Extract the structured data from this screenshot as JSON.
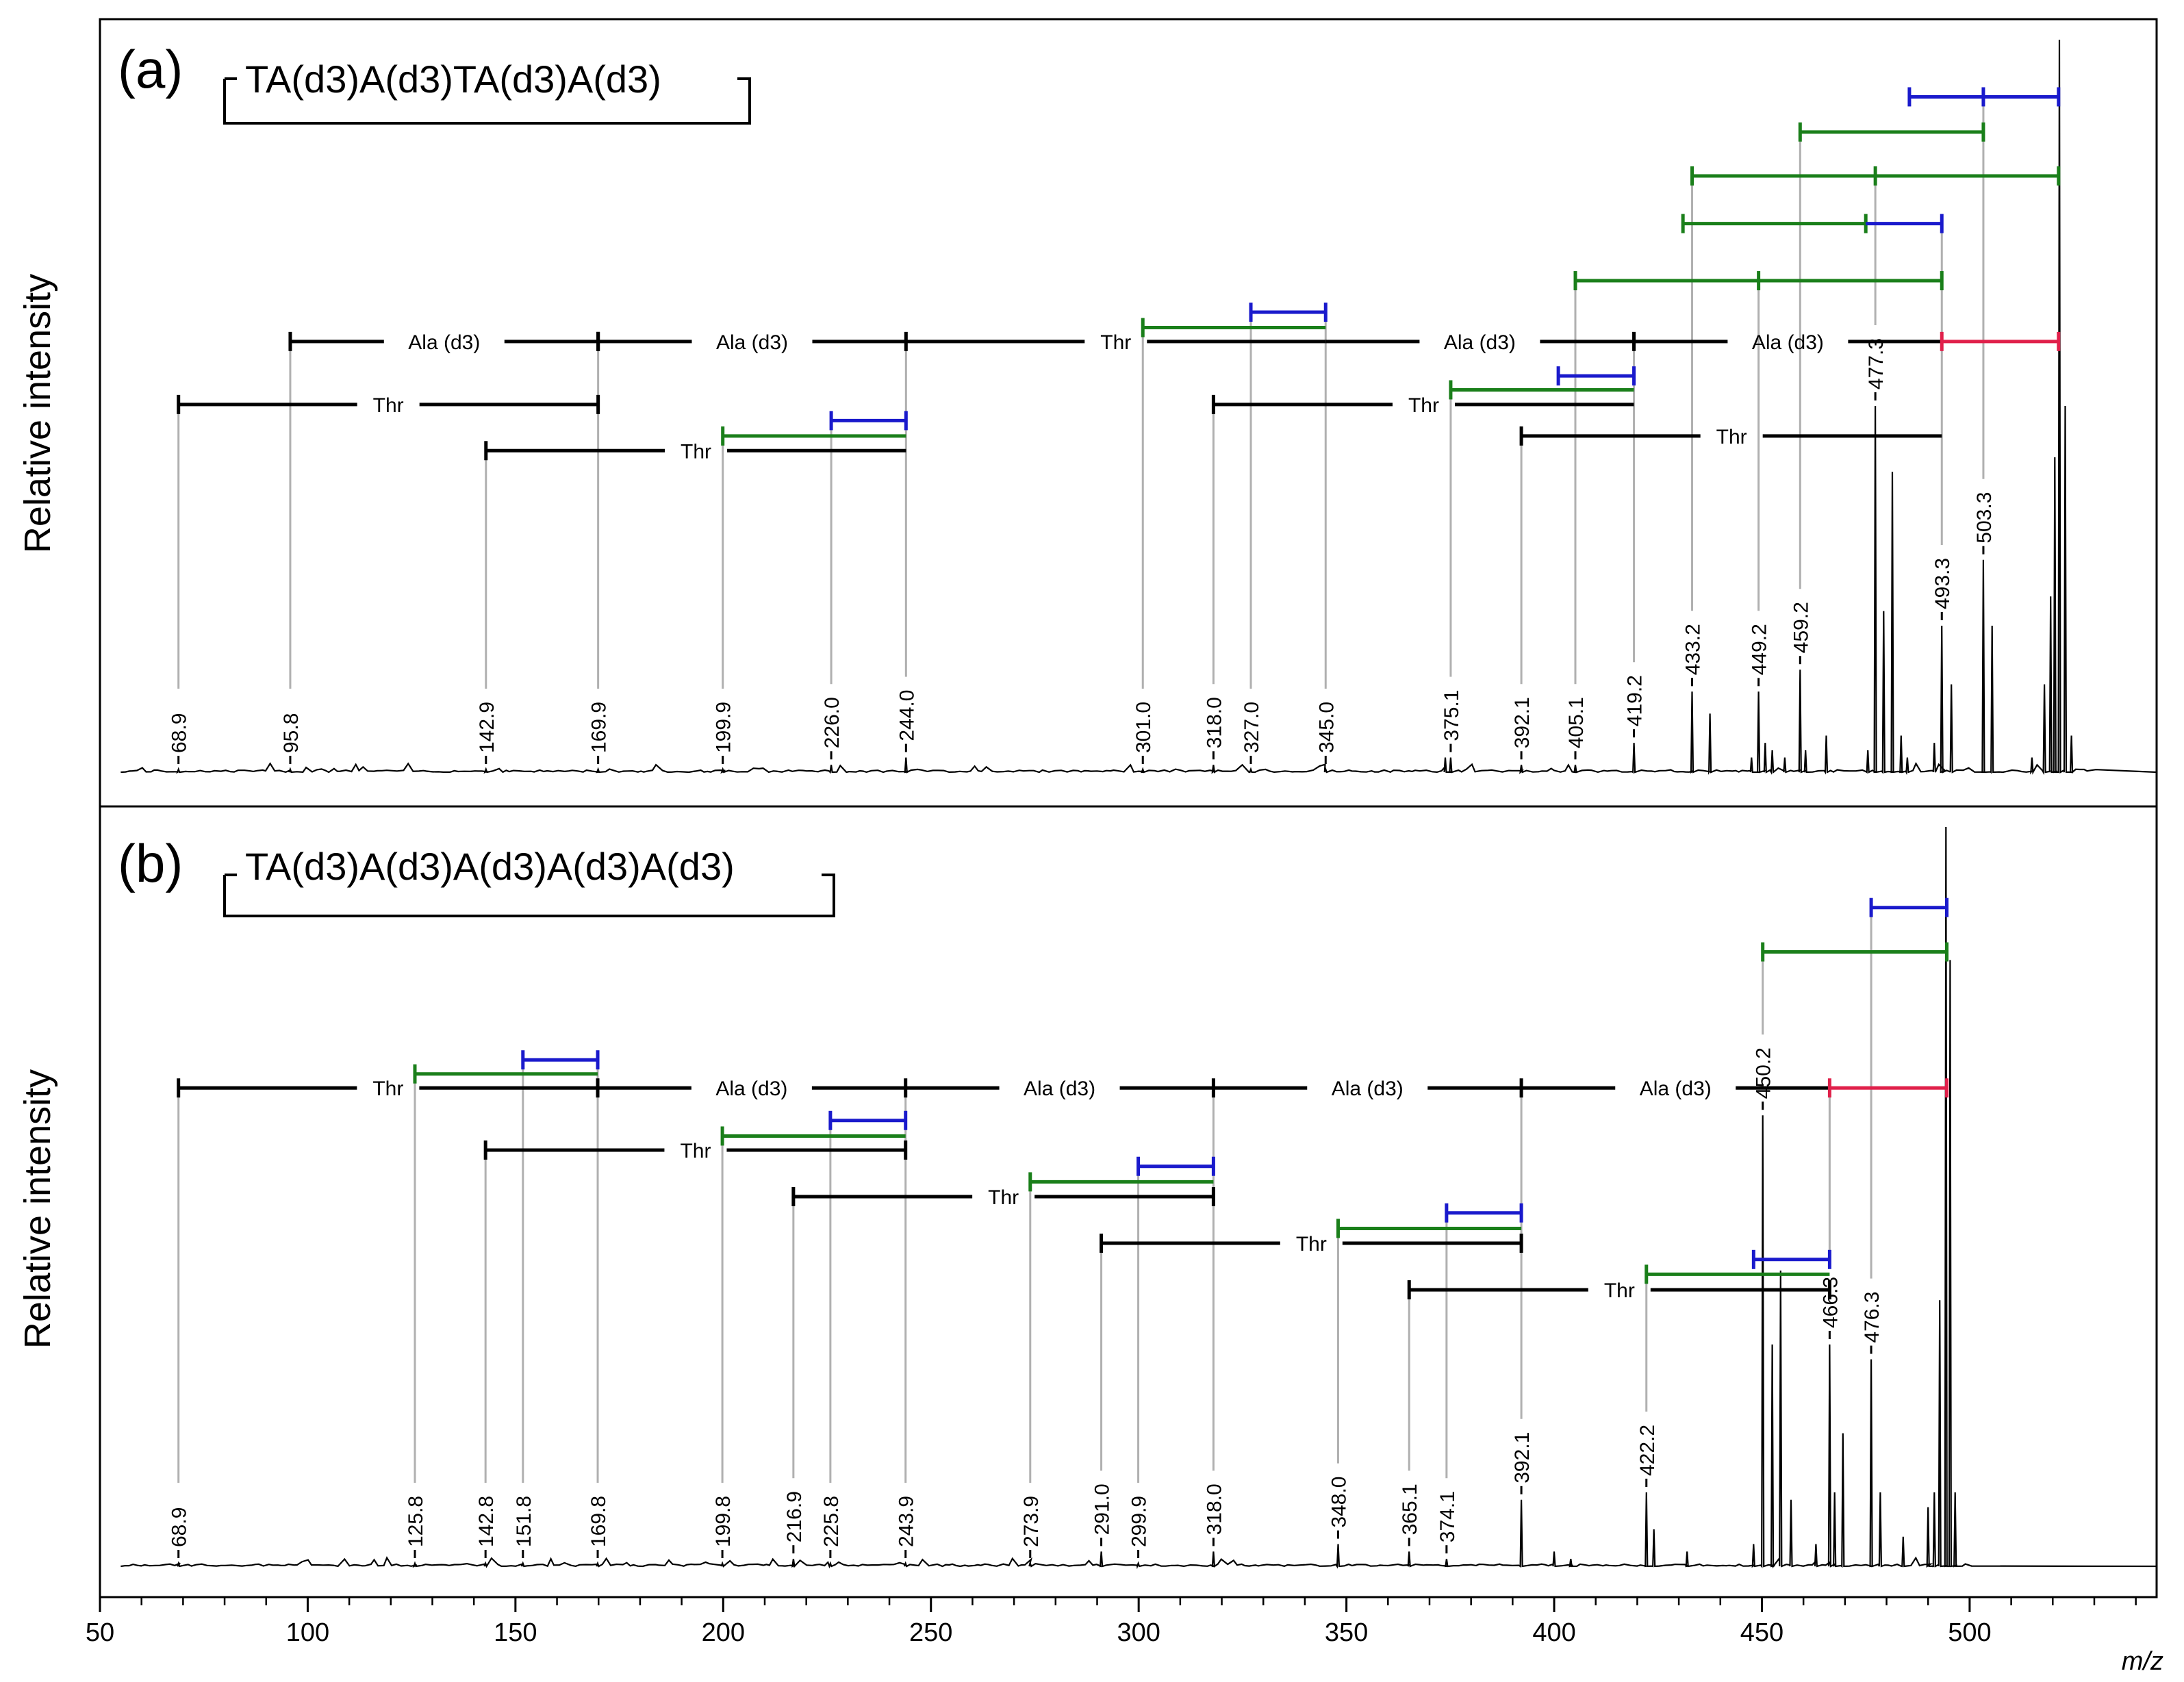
{
  "chart_data": {
    "type": "line",
    "x_axis": {
      "label": "m/z",
      "xlim": [
        50,
        545
      ],
      "ticks": [
        50,
        100,
        150,
        200,
        250,
        300,
        350,
        400,
        450,
        500
      ],
      "tick_labels": [
        "50",
        "100",
        "150",
        "200",
        "250",
        "300",
        "350",
        "400",
        "450",
        "500"
      ]
    },
    "colors": {
      "spectrum": "#000000",
      "guide": "#b0b0b0",
      "black_series": "#000000",
      "green_series": "#1a7f1a",
      "blue_series": "#1a1acc",
      "red_series": "#e0204a"
    },
    "panels": [
      {
        "id": "a",
        "panel_label": "(a)",
        "sequence": "TA(d3)A(d3)TA(d3)A(d3)",
        "ylabel": "Relative intensity",
        "peaks": [
          {
            "mz": 68.9,
            "label": "68.9",
            "rel": 0.0
          },
          {
            "mz": 95.8,
            "label": "95.8",
            "rel": 0.0
          },
          {
            "mz": 142.9,
            "label": "142.9",
            "rel": 0.0
          },
          {
            "mz": 169.9,
            "label": "169.9",
            "rel": 0.0
          },
          {
            "mz": 199.9,
            "label": "199.9",
            "rel": 0.0
          },
          {
            "mz": 226.0,
            "label": "226.0",
            "rel": 0.01
          },
          {
            "mz": 244.0,
            "label": "244.0",
            "rel": 0.02
          },
          {
            "mz": 301.0,
            "label": "301.0",
            "rel": 0.0
          },
          {
            "mz": 318.0,
            "label": "318.0",
            "rel": 0.01
          },
          {
            "mz": 327.0,
            "label": "327.0",
            "rel": 0.0
          },
          {
            "mz": 345.0,
            "label": "345.0",
            "rel": 0.0
          },
          {
            "mz": 375.1,
            "label": "375.1",
            "rel": 0.02
          },
          {
            "mz": 392.1,
            "label": "392.1",
            "rel": 0.01
          },
          {
            "mz": 405.1,
            "label": "405.1",
            "rel": 0.01
          },
          {
            "mz": 419.2,
            "label": "419.2",
            "rel": 0.04
          },
          {
            "mz": 433.2,
            "label": "433.2",
            "rel": 0.11
          },
          {
            "mz": 449.2,
            "label": "449.2",
            "rel": 0.11
          },
          {
            "mz": 459.2,
            "label": "459.2",
            "rel": 0.14
          },
          {
            "mz": 477.3,
            "label": "477.3",
            "rel": 0.5
          },
          {
            "mz": 493.3,
            "label": "493.3",
            "rel": 0.2
          },
          {
            "mz": 503.3,
            "label": "503.3",
            "rel": 0.29
          }
        ],
        "unlabeled_peaks": [
          [
            373.8,
            0.02
          ],
          [
            437.5,
            0.08
          ],
          [
            447.5,
            0.02
          ],
          [
            450.8,
            0.04
          ],
          [
            452.5,
            0.03
          ],
          [
            455.5,
            0.02
          ],
          [
            460.5,
            0.03
          ],
          [
            465.5,
            0.05
          ],
          [
            475.5,
            0.03
          ],
          [
            479.3,
            0.22
          ],
          [
            481.4,
            0.41
          ],
          [
            483.5,
            0.05
          ],
          [
            485.0,
            0.02
          ],
          [
            491.5,
            0.04
          ],
          [
            495.6,
            0.12
          ],
          [
            505.4,
            0.2
          ],
          [
            515.0,
            0.02
          ],
          [
            518.0,
            0.12
          ],
          [
            519.5,
            0.24
          ],
          [
            520.5,
            0.43
          ],
          [
            521.6,
            1.0
          ],
          [
            523.0,
            0.5
          ],
          [
            524.5,
            0.05
          ]
        ],
        "series": [
          {
            "name": "Ala (d3)",
            "color": "black",
            "from": 95.8,
            "to": 169.9,
            "ticks": [
              95.8,
              169.9
            ],
            "level": 0.588
          },
          {
            "name": "Ala (d3)",
            "color": "black",
            "from": 169.9,
            "to": 244.0,
            "ticks": [
              169.9,
              244.0
            ],
            "level": 0.588
          },
          {
            "name": "Thr",
            "color": "black",
            "from": 244.0,
            "to": 345.0,
            "ticks": [],
            "level": 0.588
          },
          {
            "name": "Ala (d3)",
            "color": "black",
            "from": 345.0,
            "to": 419.2,
            "ticks": [
              419.2
            ],
            "level": 0.588
          },
          {
            "name": "Ala (d3)",
            "color": "black",
            "from": 419.2,
            "to": 493.3,
            "ticks": [],
            "level": 0.588
          },
          {
            "name": "",
            "color": "red",
            "from": 493.3,
            "to": 521.4,
            "ticks": [
              493.3,
              521.4
            ],
            "level": 0.588
          },
          {
            "name": "Thr",
            "color": "black",
            "from": 68.9,
            "to": 169.9,
            "ticks": [
              68.9,
              169.9
            ],
            "level": 0.502
          },
          {
            "name": "Thr",
            "color": "black",
            "from": 142.9,
            "to": 244.0,
            "ticks": [
              142.9
            ],
            "level": 0.439
          },
          {
            "name": "Thr",
            "color": "black",
            "from": 318.0,
            "to": 419.2,
            "ticks": [
              318.0
            ],
            "level": 0.502
          },
          {
            "name": "Thr",
            "color": "black",
            "from": 392.1,
            "to": 493.3,
            "ticks": [
              392.1
            ],
            "level": 0.459
          },
          {
            "name": "",
            "color": "green",
            "from": 199.9,
            "to": 244.0,
            "ticks": [
              199.9
            ],
            "level": 0.459
          },
          {
            "name": "",
            "color": "blue",
            "from": 226.0,
            "to": 244.0,
            "ticks": [
              226.0,
              244.0
            ],
            "level": 0.48
          },
          {
            "name": "",
            "color": "green",
            "from": 301.0,
            "to": 345.0,
            "ticks": [
              301.0
            ],
            "level": 0.607
          },
          {
            "name": "",
            "color": "blue",
            "from": 327.0,
            "to": 345.0,
            "ticks": [
              327.0,
              345.0
            ],
            "level": 0.628
          },
          {
            "name": "",
            "color": "green",
            "from": 375.1,
            "to": 419.2,
            "ticks": [
              375.1
            ],
            "level": 0.522
          },
          {
            "name": "",
            "color": "blue",
            "from": 401.0,
            "to": 419.2,
            "ticks": [
              401.0,
              419.2
            ],
            "level": 0.541
          },
          {
            "name": "",
            "color": "green",
            "from": 405.1,
            "to": 493.3,
            "ticks": [
              405.1,
              449.2,
              493.3
            ],
            "level": 0.671
          },
          {
            "name": "",
            "color": "green",
            "from": 431.0,
            "to": 475.0,
            "ticks": [
              431.0,
              475.0
            ],
            "level": 0.749
          },
          {
            "name": "",
            "color": "blue",
            "from": 475.0,
            "to": 493.3,
            "ticks": [
              493.3
            ],
            "level": 0.749
          },
          {
            "name": "",
            "color": "green",
            "from": 433.2,
            "to": 521.4,
            "ticks": [
              433.2,
              477.3,
              521.4
            ],
            "level": 0.814
          },
          {
            "name": "",
            "color": "green",
            "from": 459.2,
            "to": 503.3,
            "ticks": [
              459.2,
              503.3
            ],
            "level": 0.874
          },
          {
            "name": "",
            "color": "blue",
            "from": 485.5,
            "to": 521.4,
            "ticks": [
              485.5,
              503.3,
              521.4
            ],
            "level": 0.922
          }
        ]
      },
      {
        "id": "b",
        "panel_label": "(b)",
        "sequence": "TA(d3)A(d3)A(d3)A(d3)A(d3)",
        "ylabel": "Relative intensity",
        "peaks": [
          {
            "mz": 68.9,
            "label": "68.9",
            "rel": 0.0
          },
          {
            "mz": 125.8,
            "label": "125.8",
            "rel": 0.0
          },
          {
            "mz": 142.8,
            "label": "142.8",
            "rel": 0.0
          },
          {
            "mz": 151.8,
            "label": "151.8",
            "rel": 0.0
          },
          {
            "mz": 169.8,
            "label": "169.8",
            "rel": 0.0
          },
          {
            "mz": 199.8,
            "label": "199.8",
            "rel": 0.0
          },
          {
            "mz": 216.9,
            "label": "216.9",
            "rel": 0.01
          },
          {
            "mz": 225.8,
            "label": "225.8",
            "rel": 0.0
          },
          {
            "mz": 243.9,
            "label": "243.9",
            "rel": 0.0
          },
          {
            "mz": 273.9,
            "label": "273.9",
            "rel": 0.0
          },
          {
            "mz": 291.0,
            "label": "291.0",
            "rel": 0.02
          },
          {
            "mz": 299.9,
            "label": "299.9",
            "rel": 0.0
          },
          {
            "mz": 318.0,
            "label": "318.0",
            "rel": 0.02
          },
          {
            "mz": 348.0,
            "label": "348.0",
            "rel": 0.03
          },
          {
            "mz": 365.1,
            "label": "365.1",
            "rel": 0.02
          },
          {
            "mz": 374.1,
            "label": "374.1",
            "rel": 0.01
          },
          {
            "mz": 392.1,
            "label": "392.1",
            "rel": 0.09
          },
          {
            "mz": 422.2,
            "label": "422.2",
            "rel": 0.1
          },
          {
            "mz": 450.2,
            "label": "450.2",
            "rel": 0.61
          },
          {
            "mz": 466.3,
            "label": "466.3",
            "rel": 0.3
          },
          {
            "mz": 476.3,
            "label": "476.3",
            "rel": 0.28
          }
        ],
        "unlabeled_peaks": [
          [
            400.0,
            0.02
          ],
          [
            404.0,
            0.01
          ],
          [
            424.0,
            0.05
          ],
          [
            432.0,
            0.02
          ],
          [
            448.0,
            0.03
          ],
          [
            452.5,
            0.3
          ],
          [
            454.5,
            0.4
          ],
          [
            457.0,
            0.09
          ],
          [
            463.0,
            0.03
          ],
          [
            467.5,
            0.1
          ],
          [
            469.5,
            0.18
          ],
          [
            478.5,
            0.1
          ],
          [
            484.0,
            0.04
          ],
          [
            490.0,
            0.08
          ],
          [
            491.5,
            0.1
          ],
          [
            492.8,
            0.36
          ],
          [
            494.3,
            1.0
          ],
          [
            495.3,
            0.82
          ],
          [
            496.5,
            0.1
          ]
        ],
        "series": [
          {
            "name": "Thr",
            "color": "black",
            "from": 68.9,
            "to": 169.8,
            "ticks": [
              68.9,
              169.8
            ],
            "level": 0.647
          },
          {
            "name": "Ala (d3)",
            "color": "black",
            "from": 169.8,
            "to": 243.9,
            "ticks": [
              243.9
            ],
            "level": 0.647
          },
          {
            "name": "Ala (d3)",
            "color": "black",
            "from": 243.9,
            "to": 318.0,
            "ticks": [
              318.0
            ],
            "level": 0.647
          },
          {
            "name": "Ala (d3)",
            "color": "black",
            "from": 318.0,
            "to": 392.1,
            "ticks": [
              392.1
            ],
            "level": 0.647
          },
          {
            "name": "Ala (d3)",
            "color": "black",
            "from": 392.1,
            "to": 466.3,
            "ticks": [],
            "level": 0.647
          },
          {
            "name": "",
            "color": "red",
            "from": 466.3,
            "to": 494.5,
            "ticks": [
              466.3,
              494.5
            ],
            "level": 0.647
          },
          {
            "name": "",
            "color": "green",
            "from": 125.8,
            "to": 169.8,
            "ticks": [
              125.8
            ],
            "level": 0.666
          },
          {
            "name": "",
            "color": "blue",
            "from": 151.8,
            "to": 169.8,
            "ticks": [
              151.8,
              169.8
            ],
            "level": 0.685
          },
          {
            "name": "Thr",
            "color": "black",
            "from": 142.8,
            "to": 243.9,
            "ticks": [
              142.8,
              243.9
            ],
            "level": 0.563
          },
          {
            "name": "",
            "color": "green",
            "from": 199.8,
            "to": 243.9,
            "ticks": [
              199.8
            ],
            "level": 0.582
          },
          {
            "name": "",
            "color": "blue",
            "from": 225.8,
            "to": 243.9,
            "ticks": [
              225.8,
              243.9
            ],
            "level": 0.603
          },
          {
            "name": "Thr",
            "color": "black",
            "from": 216.9,
            "to": 318.0,
            "ticks": [
              216.9,
              318.0
            ],
            "level": 0.5
          },
          {
            "name": "",
            "color": "green",
            "from": 273.9,
            "to": 318.0,
            "ticks": [
              273.9
            ],
            "level": 0.52
          },
          {
            "name": "",
            "color": "blue",
            "from": 299.9,
            "to": 318.0,
            "ticks": [
              299.9,
              318.0
            ],
            "level": 0.541
          },
          {
            "name": "Thr",
            "color": "black",
            "from": 291.0,
            "to": 392.1,
            "ticks": [
              291.0,
              392.1
            ],
            "level": 0.437
          },
          {
            "name": "",
            "color": "green",
            "from": 348.0,
            "to": 392.1,
            "ticks": [
              348.0
            ],
            "level": 0.457
          },
          {
            "name": "",
            "color": "blue",
            "from": 374.1,
            "to": 392.1,
            "ticks": [
              374.1,
              392.1
            ],
            "level": 0.478
          },
          {
            "name": "Thr",
            "color": "black",
            "from": 365.1,
            "to": 466.3,
            "ticks": [
              365.1,
              466.3
            ],
            "level": 0.374
          },
          {
            "name": "",
            "color": "green",
            "from": 422.2,
            "to": 466.3,
            "ticks": [
              422.2
            ],
            "level": 0.395
          },
          {
            "name": "",
            "color": "blue",
            "from": 448.0,
            "to": 466.3,
            "ticks": [
              448.0,
              466.3
            ],
            "level": 0.415
          },
          {
            "name": "",
            "color": "green",
            "from": 450.2,
            "to": 494.5,
            "ticks": [
              450.2,
              494.5
            ],
            "level": 0.831
          },
          {
            "name": "",
            "color": "blue",
            "from": 476.3,
            "to": 494.5,
            "ticks": [
              476.3,
              494.5
            ],
            "level": 0.891
          }
        ]
      }
    ]
  }
}
